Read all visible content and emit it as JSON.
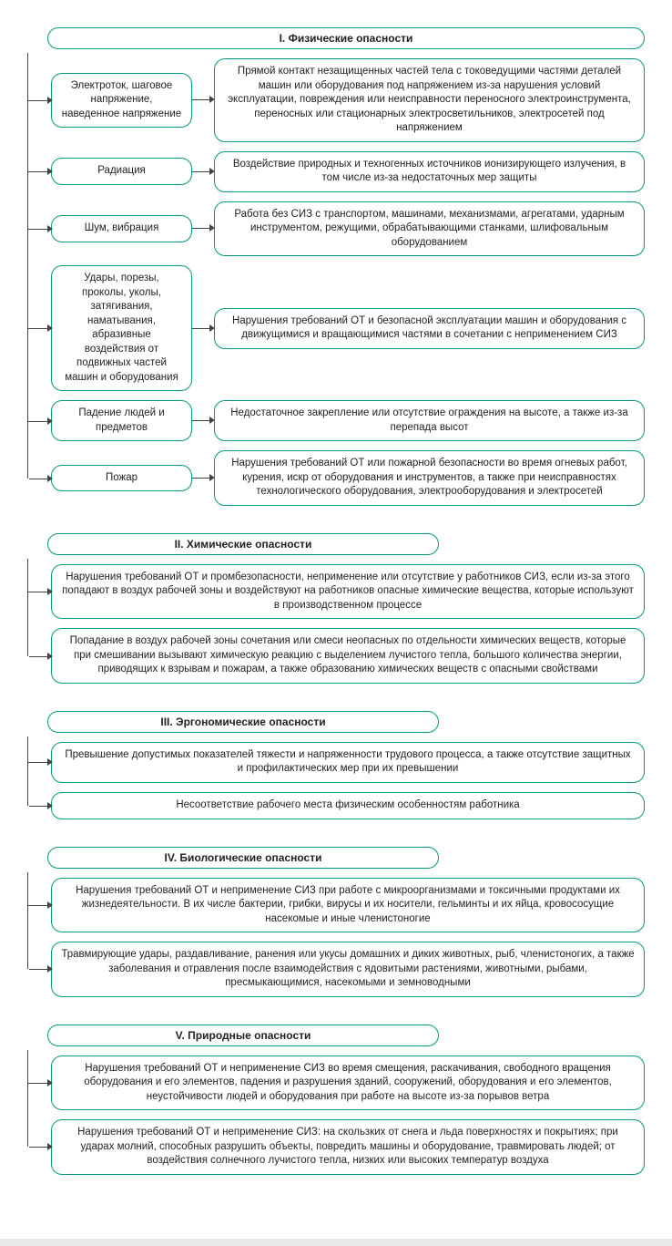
{
  "colors": {
    "border": "#009a7b",
    "line": "#444444",
    "page_bg": "#ffffff",
    "body_bg": "#e8eaea"
  },
  "section1": {
    "title": "I. Физические опасности",
    "rows": [
      {
        "label": "Электроток, шаговое напряжение, наведенное напряжение",
        "desc": "Прямой контакт незащищенных частей тела с токоведущими частями деталей машин или оборудования под напряжением из-за нарушения условий эксплуатации, повреждения или неисправности переносного электроинструмента, переносных или стационарных электросветильников, электросетей под напряжением"
      },
      {
        "label": "Радиация",
        "desc": "Воздействие природных и техногенных источников ионизирующего излучения, в том числе из-за недостаточных мер защиты"
      },
      {
        "label": "Шум, вибрация",
        "desc": "Работа без СИЗ с транспортом, машинами, механизмами, агрегатами, ударным инструментом, режущими, обрабатывающими станками, шлифовальным оборудованием"
      },
      {
        "label": "Удары, порезы, проколы, уколы, затягивания, наматывания, абразивные воздействия от подвижных частей машин и оборудования",
        "desc": "Нарушения требований ОТ и безопасной эксплуатации машин и оборудования с движущимися и вращающимися частями в сочетании с неприменением СИЗ"
      },
      {
        "label": "Падение людей и предметов",
        "desc": "Недостаточное закрепление или отсутствие ограждения на высоте, а также из-за перепада высот"
      },
      {
        "label": "Пожар",
        "desc": "Нарушения требований ОТ или пожарной безопасности во время огневых работ, курения, искр от оборудования и инструментов, а также при неисправностях технологического оборудования, электрооборудования и электросетей"
      }
    ]
  },
  "section2": {
    "title": "II. Химические опасности",
    "items": [
      "Нарушения требований ОТ и промбезопасности, неприменение или отсутствие у работников СИЗ, если из-за этого попадают в воздух рабочей зоны и воздействуют на работников опасные химические вещества, которые используют в производственном процессе",
      "Попадание в воздух рабочей зоны сочетания или смеси неопасных по отдельности химических веществ, которые при смешивании вызывают химическую реакцию с выделением лучистого тепла, большого количества энергии, приводящих к взрывам и пожарам, а также образованию химических веществ с опасными свойствами"
    ]
  },
  "section3": {
    "title": "III. Эргономические опасности",
    "items": [
      "Превышение допустимых показателей тяжести и напряженности трудового процесса, а также отсутствие защитных и профилактических мер при их превышении",
      "Несоответствие рабочего места физическим особенностям работника"
    ]
  },
  "section4": {
    "title": "IV. Биологические опасности",
    "items": [
      "Нарушения требований ОТ и неприменение СИЗ при работе с микроорганизмами и токсичными продуктами их жизнедеятельности. В их числе бактерии, грибки, вирусы и их носители, гельминты и их яйца, кровососущие насекомые и иные членистоногие",
      "Травмирующие удары, раздавливание, ранения или укусы домашних и диких животных, рыб, членистоногих, а также заболевания и отравления после взаимодействия с ядовитыми растениями, животными, рыбами, пресмыкающимися, насекомыми и земноводными"
    ]
  },
  "section5": {
    "title": "V. Природные опасности",
    "items": [
      "Нарушения требований ОТ и неприменение СИЗ во время смещения, раскачивания, свободного вращения оборудования и его элементов, падения и разрушения зданий, сооружений, оборудования и его элементов, неустойчивости людей и оборудования при работе на высоте из-за порывов ветра",
      "Нарушения требований ОТ и неприменение СИЗ:\nна скользких от снега и льда поверхностях и покрытиях; при ударах молний, способных разрушить объекты, повредить машины и оборудование, травмировать людей; от воздействия солнечного лучистого тепла, низких или высоких температур воздуха"
    ]
  }
}
